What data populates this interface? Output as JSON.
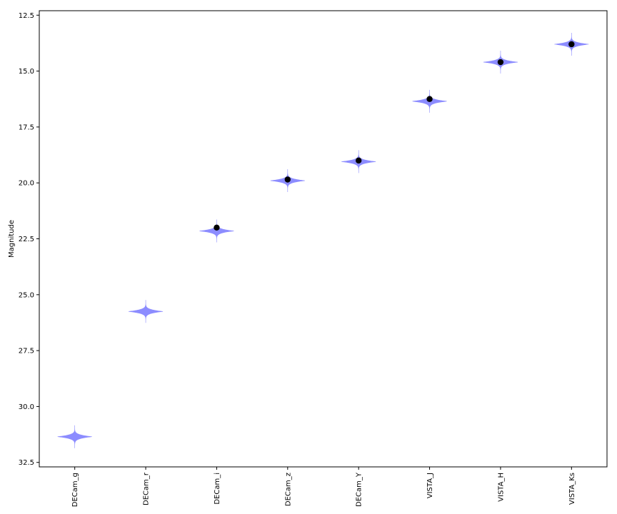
{
  "chart_data": {
    "type": "violin",
    "title": "",
    "xlabel": "",
    "ylabel": "Magnitude",
    "y_inverted": true,
    "ylim": [
      32.7,
      12.3
    ],
    "yticks": [
      "12.5",
      "15.0",
      "17.5",
      "20.0",
      "22.5",
      "25.0",
      "27.5",
      "30.0",
      "32.5"
    ],
    "categories": [
      "DECam_g",
      "DECam_r",
      "DECam_i",
      "DECam_z",
      "DECam_Y",
      "VISTA_J",
      "VISTA_H",
      "VISTA_Ks"
    ],
    "violin_centers": [
      31.35,
      25.75,
      22.15,
      19.9,
      19.05,
      16.35,
      14.6,
      13.8
    ],
    "points": [
      null,
      null,
      22.0,
      19.85,
      19.0,
      16.25,
      14.6,
      13.8
    ],
    "grid": false,
    "colors": {
      "violin": "#8c8cff",
      "point": "#000000"
    }
  }
}
